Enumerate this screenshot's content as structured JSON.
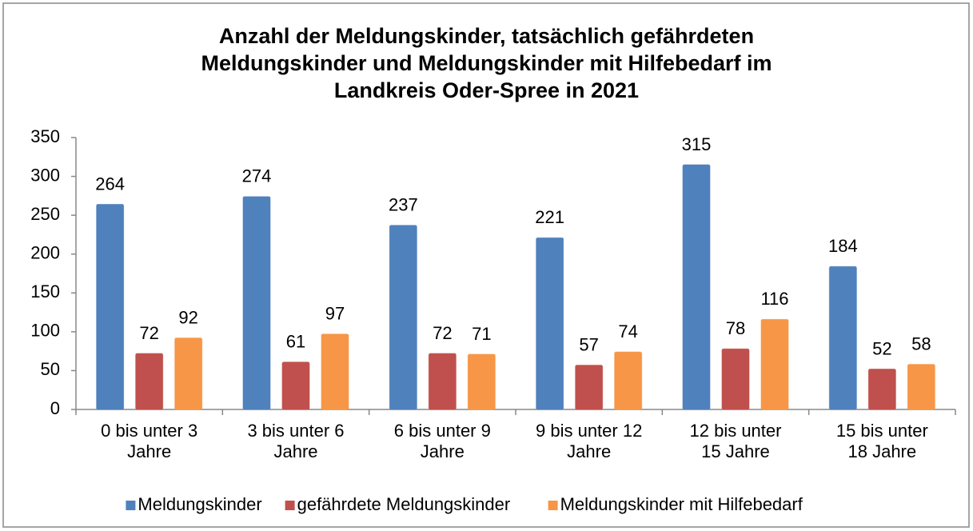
{
  "chart_data": {
    "type": "bar",
    "title": "Anzahl der Meldungskinder, tatsächlich gefährdeten\nMeldungskinder und Meldungskinder mit Hilfebedarf im\nLandkreis Oder-Spree in 2021",
    "categories": [
      "0 bis unter 3\nJahre",
      "3 bis unter 6\nJahre",
      "6 bis unter 9\nJahre",
      "9 bis unter 12\nJahre",
      "12 bis unter\n15 Jahre",
      "15 bis unter\n18 Jahre"
    ],
    "series": [
      {
        "name": "Meldungskinder",
        "color": "#4f81bd",
        "values": [
          264,
          274,
          237,
          221,
          315,
          184
        ]
      },
      {
        "name": "gefährdete Meldungskinder",
        "color": "#c0504d",
        "values": [
          72,
          61,
          72,
          57,
          78,
          52
        ]
      },
      {
        "name": "Meldungskinder mit Hilfebedarf",
        "color": "#f79646",
        "values": [
          92,
          97,
          71,
          74,
          116,
          58
        ]
      }
    ],
    "ylim": [
      0,
      350
    ],
    "yticks": [
      0,
      50,
      100,
      150,
      200,
      250,
      300,
      350
    ],
    "grid": false,
    "legend": "bottom"
  }
}
